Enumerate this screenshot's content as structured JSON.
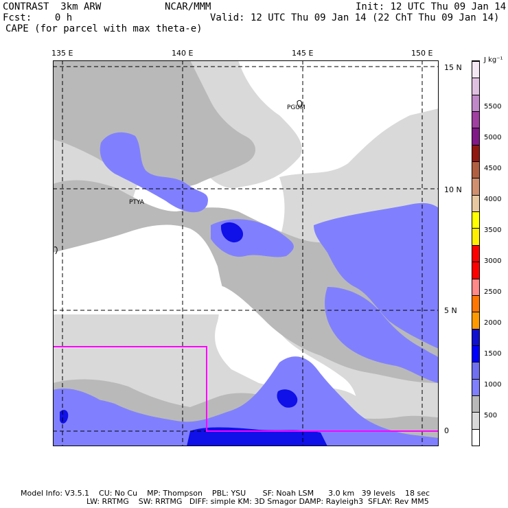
{
  "header": {
    "model": "CONTRAST  3km ARW",
    "org": "NCAR/MMM",
    "init": "Init: 12 UTC Thu 09 Jan 14",
    "fcst": "Fcst:    0 h",
    "valid": "Valid: 12 UTC Thu 09 Jan 14 (22 ChT Thu 09 Jan 14)",
    "field": "CAPE (for parcel with max theta-e)"
  },
  "map": {
    "lon_labels": [
      "135 E",
      "140 E",
      "145 E",
      "150 E"
    ],
    "lat_labels": [
      "15 N",
      "10 N",
      "5 N",
      "0"
    ],
    "stations": [
      "PGUM",
      "PTYA"
    ],
    "colors": {
      "bg": "#ffffff",
      "light_gray": "#d9d9d9",
      "mid_gray": "#b9b9b9",
      "light_blue": "#8080ff",
      "blue": "#1010e8",
      "boundary": "#ff00ff"
    }
  },
  "legend": {
    "unit": "J kg⁻¹",
    "labels": [
      "5500",
      "5000",
      "4500",
      "4000",
      "3500",
      "3000",
      "2500",
      "2000",
      "1500",
      "1000",
      "500"
    ],
    "colors": [
      "#ffffff",
      "#d9d9d9",
      "#b9b9b9",
      "#8080ff",
      "#7070f0",
      "#0000ff",
      "#1010d0",
      "#ff9900",
      "#ff7700",
      "#ff8888",
      "#ff0000",
      "#ff0000",
      "#ffee00",
      "#ffff00",
      "#e8c8a0",
      "#d09070",
      "#b06040",
      "#901810",
      "#801888",
      "#a040a0",
      "#c088c8",
      "#e0c0e0",
      "#f4e8f4"
    ]
  },
  "footer": {
    "line1": "Model Info: V3.5.1    CU: No Cu    MP: Thompson    PBL: YSU       SF: Noah LSM      3.0 km   39 levels    18 sec",
    "line2": "LW: RRTMG    SW: RRTMG   DIFF: simple KM: 3D Smagor DAMP: Rayleigh3  SFLAY: Rev MM5"
  }
}
